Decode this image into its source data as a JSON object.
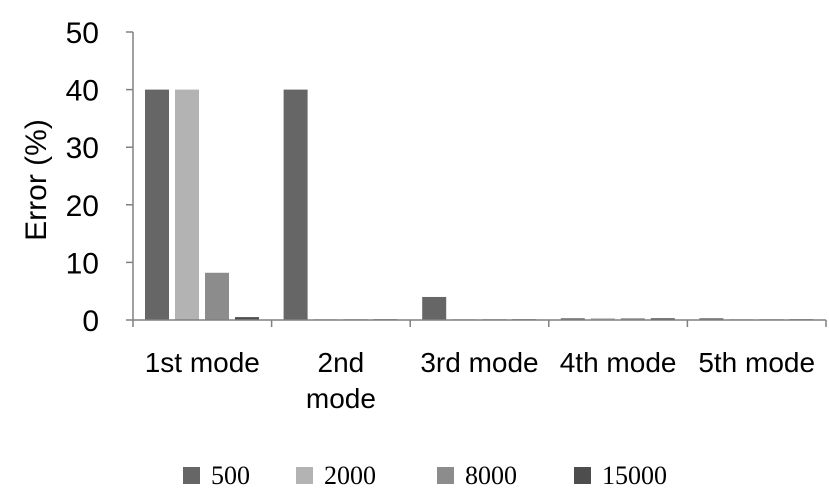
{
  "chart_data": {
    "type": "bar",
    "categories": [
      "1st mode",
      "2nd mode",
      "3rd mode",
      "4th mode",
      "5th mode"
    ],
    "category_lines": [
      [
        "1st mode"
      ],
      [
        "2nd",
        "mode"
      ],
      [
        "3rd mode"
      ],
      [
        "4th mode"
      ],
      [
        "5th mode"
      ]
    ],
    "series": [
      {
        "name": "500",
        "color": "#666666",
        "values": [
          40,
          40,
          4,
          0.3,
          0.3
        ]
      },
      {
        "name": "2000",
        "color": "#b3b3b3",
        "values": [
          40,
          0.1,
          0.1,
          0.3,
          0.1
        ]
      },
      {
        "name": "8000",
        "color": "#8c8c8c",
        "values": [
          8.2,
          0.1,
          0.1,
          0.3,
          0.1
        ]
      },
      {
        "name": "15000",
        "color": "#4d4d4d",
        "values": [
          0.5,
          0.1,
          0.1,
          0.3,
          0.1
        ]
      }
    ],
    "ylabel": "Error (%)",
    "xlabel": "",
    "ylim": [
      0,
      50
    ],
    "yticks": [
      0,
      10,
      20,
      30,
      40,
      50
    ],
    "grid": false,
    "legend_position": "bottom"
  }
}
